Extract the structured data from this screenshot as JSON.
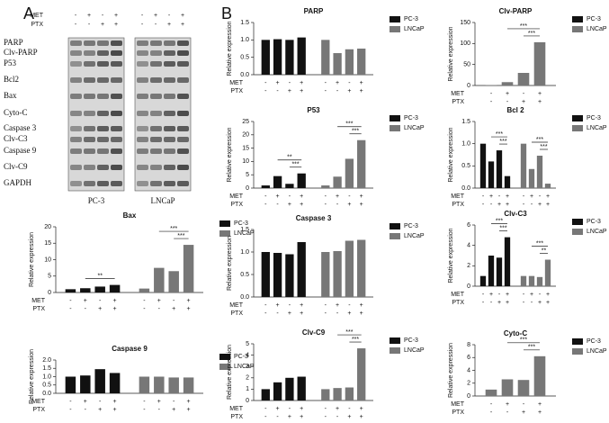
{
  "panel_labels": [
    "A",
    "B"
  ],
  "blot": {
    "treatments": [
      {
        "label": "MET",
        "values": [
          "-",
          "+",
          "-",
          "+",
          "-",
          "+",
          "-",
          "+"
        ]
      },
      {
        "label": "PTX",
        "values": [
          "-",
          "-",
          "+",
          "+",
          "-",
          "-",
          "+",
          "+"
        ]
      }
    ],
    "proteins": [
      "PARP",
      "Clv-PARP",
      "P53",
      "Bcl2",
      "Bax",
      "Cyto-C",
      "Caspase 3",
      "Clv-C3",
      "Caspase 9",
      "Clv-C9",
      "GAPDH"
    ],
    "cell_lines": [
      "PC-3",
      "LNCaP"
    ]
  },
  "chart_data": [
    {
      "type": "bar",
      "title": "Bax",
      "y_label": "Relative expression",
      "ylim": [
        0,
        20
      ],
      "yticks": [
        0,
        5,
        10,
        15,
        20
      ],
      "series": [
        {
          "name": "PC-3",
          "color": "#111111",
          "values": [
            1.0,
            1.3,
            1.8,
            2.3
          ]
        },
        {
          "name": "LNCaP",
          "color": "#777777",
          "values": [
            1.2,
            7.5,
            6.5,
            14.5
          ]
        }
      ],
      "treatments": [
        {
          "label": "MET",
          "values": [
            "-",
            "+",
            "-",
            "+",
            "-",
            "+",
            "-",
            "+"
          ]
        },
        {
          "label": "PTX",
          "values": [
            "-",
            "-",
            "+",
            "+",
            "-",
            "-",
            "+",
            "+"
          ]
        }
      ],
      "annotations": [
        "**",
        "***",
        "***"
      ]
    },
    {
      "type": "bar",
      "title": "Caspase 9",
      "y_label": "Relative expression",
      "ylim": [
        0,
        2
      ],
      "yticks": [
        {
          "value": 0,
          "label": "0.0"
        },
        {
          "value": 0.5,
          "label": "0.5"
        },
        {
          "value": 1,
          "label": "1.0"
        },
        {
          "value": 1.5,
          "label": "1.5"
        },
        {
          "value": 2,
          "label": "2.0"
        }
      ],
      "series": [
        {
          "name": "PC-3",
          "color": "#111111",
          "values": [
            1.0,
            1.07,
            1.45,
            1.22
          ]
        },
        {
          "name": "LNCaP",
          "color": "#777777",
          "values": [
            1.0,
            1.0,
            0.95,
            0.95
          ]
        }
      ],
      "treatments": [
        {
          "label": "MET",
          "values": [
            "-",
            "+",
            "-",
            "+",
            "-",
            "+",
            "-",
            "+"
          ]
        },
        {
          "label": "PTX",
          "values": [
            "-",
            "-",
            "+",
            "+",
            "-",
            "-",
            "+",
            "+"
          ]
        }
      ],
      "annotations": []
    },
    {
      "type": "bar",
      "title": "PARP",
      "y_label": "Relative expression",
      "ylim": [
        0,
        1.5
      ],
      "yticks": [
        {
          "value": 0,
          "label": "0.0"
        },
        {
          "value": 0.5,
          "label": "0.5"
        },
        {
          "value": 1,
          "label": "1.0"
        },
        {
          "value": 1.5,
          "label": "1.5"
        }
      ],
      "series": [
        {
          "name": "PC-3",
          "color": "#111111",
          "values": [
            1.0,
            1.02,
            1.0,
            1.07
          ]
        },
        {
          "name": "LNCaP",
          "color": "#777777",
          "values": [
            1.0,
            0.62,
            0.73,
            0.75
          ]
        }
      ],
      "treatments": [
        {
          "label": "MET",
          "values": [
            "-",
            "+",
            "-",
            "+",
            "-",
            "+",
            "-",
            "+"
          ]
        },
        {
          "label": "PTX",
          "values": [
            "-",
            "-",
            "+",
            "+",
            "-",
            "-",
            "+",
            "+"
          ]
        }
      ],
      "annotations": []
    },
    {
      "type": "bar",
      "title": "Clv-PARP",
      "y_label": "Relative expression",
      "ylim": [
        0,
        150
      ],
      "yticks": [
        0,
        50,
        100,
        150
      ],
      "series": [
        {
          "name": "PC-3",
          "color": "#111111",
          "values": []
        },
        {
          "name": "LNCaP",
          "color": "#777777",
          "values": [
            1,
            8,
            30,
            103
          ]
        }
      ],
      "treatments": [
        {
          "label": "MET",
          "values": [
            "-",
            "+",
            "-",
            "+"
          ]
        },
        {
          "label": "PTX",
          "values": [
            "-",
            "-",
            "+",
            "+"
          ]
        }
      ],
      "annotations": [
        "***",
        "***"
      ]
    },
    {
      "type": "bar",
      "title": "P53",
      "y_label": "Relative expression",
      "ylim": [
        0,
        25
      ],
      "yticks": [
        0,
        5,
        10,
        15,
        20,
        25
      ],
      "series": [
        {
          "name": "PC-3",
          "color": "#111111",
          "values": [
            1.0,
            4.5,
            1.6,
            5.5
          ]
        },
        {
          "name": "LNCaP",
          "color": "#777777",
          "values": [
            1.0,
            4.3,
            11,
            18
          ]
        }
      ],
      "treatments": [
        {
          "label": "MET",
          "values": [
            "-",
            "+",
            "-",
            "+",
            "-",
            "+",
            "-",
            "+"
          ]
        },
        {
          "label": "PTX",
          "values": [
            "-",
            "-",
            "+",
            "+",
            "-",
            "-",
            "+",
            "+"
          ]
        }
      ],
      "annotations": [
        "**",
        "***",
        "***",
        "***"
      ]
    },
    {
      "type": "bar",
      "title": "Bcl 2",
      "y_label": "Relative expression",
      "ylim": [
        0,
        1.5
      ],
      "yticks": [
        {
          "value": 0,
          "label": "0.0"
        },
        {
          "value": 0.5,
          "label": "0.5"
        },
        {
          "value": 1,
          "label": "1.0"
        },
        {
          "value": 1.5,
          "label": "1.5"
        }
      ],
      "series": [
        {
          "name": "PC-3",
          "color": "#111111",
          "values": [
            1.0,
            0.6,
            0.85,
            0.27
          ]
        },
        {
          "name": "LNCaP",
          "color": "#777777",
          "values": [
            1.0,
            0.43,
            0.73,
            0.1
          ]
        }
      ],
      "treatments": [
        {
          "label": "MET",
          "values": [
            "-",
            "+",
            "-",
            "+",
            "-",
            "+",
            "-",
            "+"
          ]
        },
        {
          "label": "PTX",
          "values": [
            "-",
            "-",
            "+",
            "+",
            "-",
            "-",
            "+",
            "+"
          ]
        }
      ],
      "annotations": [
        "***",
        "***",
        "***",
        "***"
      ]
    },
    {
      "type": "bar",
      "title": "Caspase 3",
      "y_label": "Relative expression",
      "ylim": [
        0,
        1.5
      ],
      "yticks": [
        {
          "value": 0,
          "label": "0.0"
        },
        {
          "value": 0.5,
          "label": "0.5"
        },
        {
          "value": 1,
          "label": "1.0"
        },
        {
          "value": 1.5,
          "label": "1.5"
        }
      ],
      "series": [
        {
          "name": "PC-3",
          "color": "#111111",
          "values": [
            1.0,
            0.98,
            0.95,
            1.22
          ]
        },
        {
          "name": "LNCaP",
          "color": "#777777",
          "values": [
            1.0,
            1.02,
            1.25,
            1.27
          ]
        }
      ],
      "treatments": [
        {
          "label": "MET",
          "values": [
            "-",
            "+",
            "-",
            "+",
            "-",
            "+",
            "-",
            "+"
          ]
        },
        {
          "label": "PTX",
          "values": [
            "-",
            "-",
            "+",
            "+",
            "-",
            "-",
            "+",
            "+"
          ]
        }
      ],
      "annotations": []
    },
    {
      "type": "bar",
      "title": "Clv-C3",
      "y_label": "Relative expression",
      "ylim": [
        0,
        6
      ],
      "yticks": [
        0,
        2,
        4,
        6
      ],
      "series": [
        {
          "name": "PC-3",
          "color": "#111111",
          "values": [
            1.0,
            3.0,
            2.8,
            4.8
          ]
        },
        {
          "name": "LNCaP",
          "color": "#777777",
          "values": [
            1.0,
            1.0,
            0.9,
            2.6
          ]
        }
      ],
      "treatments": [
        {
          "label": "MET",
          "values": [
            "-",
            "+",
            "-",
            "+",
            "-",
            "+",
            "-",
            "+"
          ]
        },
        {
          "label": "PTX",
          "values": [
            "-",
            "-",
            "+",
            "+",
            "-",
            "-",
            "+",
            "+"
          ]
        }
      ],
      "annotations": [
        "***",
        "***",
        "***",
        "**"
      ]
    },
    {
      "type": "bar",
      "title": "Clv-C9",
      "y_label": "Relative expression",
      "ylim": [
        0,
        5
      ],
      "yticks": [
        0,
        1,
        2,
        3,
        4,
        5
      ],
      "series": [
        {
          "name": "PC-3",
          "color": "#111111",
          "values": [
            1.0,
            1.6,
            2.0,
            2.1
          ]
        },
        {
          "name": "LNCaP",
          "color": "#777777",
          "values": [
            1.0,
            1.1,
            1.15,
            4.6
          ]
        }
      ],
      "treatments": [
        {
          "label": "MET",
          "values": [
            "-",
            "+",
            "-",
            "+",
            "-",
            "+",
            "-",
            "+"
          ]
        },
        {
          "label": "PTX",
          "values": [
            "-",
            "-",
            "+",
            "+",
            "-",
            "-",
            "+",
            "+"
          ]
        }
      ],
      "annotations": [
        "***",
        "***"
      ]
    },
    {
      "type": "bar",
      "title": "Cyto-C",
      "y_label": "Relative expression",
      "ylim": [
        0,
        8
      ],
      "yticks": [
        0,
        2,
        4,
        6,
        8
      ],
      "series": [
        {
          "name": "PC-3",
          "color": "#111111",
          "values": []
        },
        {
          "name": "LNCaP",
          "color": "#777777",
          "values": [
            1.0,
            2.6,
            2.5,
            6.2
          ]
        }
      ],
      "treatments": [
        {
          "label": "MET",
          "values": [
            "-",
            "+",
            "-",
            "+"
          ]
        },
        {
          "label": "PTX",
          "values": [
            "-",
            "-",
            "+",
            "+"
          ]
        }
      ],
      "annotations": [
        "***",
        "***"
      ]
    }
  ]
}
